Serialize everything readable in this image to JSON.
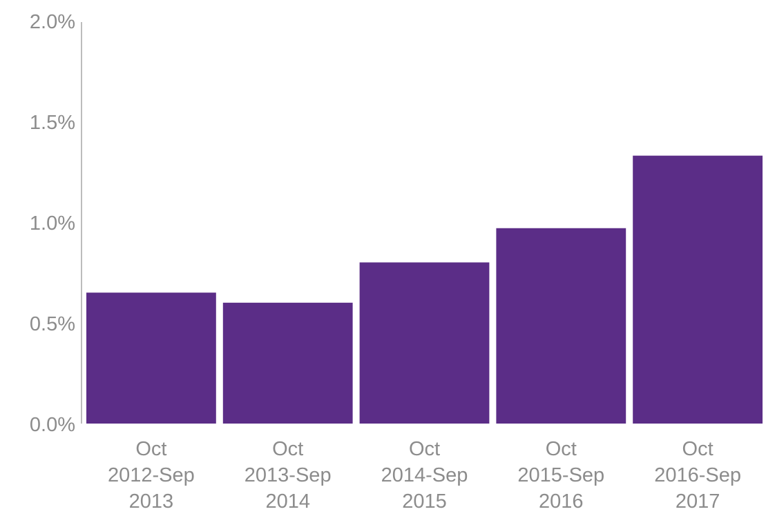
{
  "chart_data": {
    "type": "bar",
    "categories": [
      [
        "Oct",
        "2012-Sep",
        "2013"
      ],
      [
        "Oct",
        "2013-Sep",
        "2014"
      ],
      [
        "Oct",
        "2014-Sep",
        "2015"
      ],
      [
        "Oct",
        "2015-Sep",
        "2016"
      ],
      [
        "Oct",
        "2016-Sep",
        "2017"
      ]
    ],
    "values": [
      0.65,
      0.6,
      0.8,
      0.97,
      1.33
    ],
    "yticks": [
      "0.0%",
      "0.5%",
      "1.0%",
      "1.5%",
      "2.0%"
    ],
    "ylim": [
      0,
      2.0
    ],
    "title": "",
    "xlabel": "",
    "ylabel": "",
    "grid": false,
    "bar_color": "#5b2d87",
    "axis_color": "#a6a6a6",
    "text_color": "#8c8c8c"
  }
}
